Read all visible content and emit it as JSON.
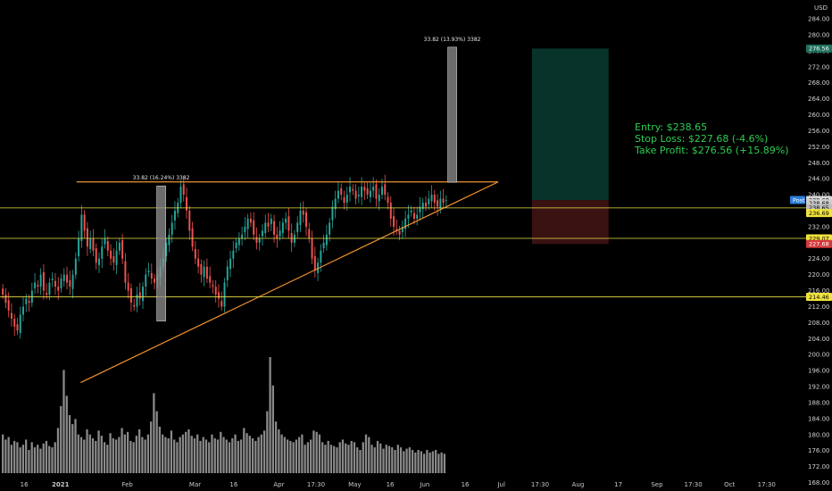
{
  "chart_data": {
    "type": "candlestick",
    "currency": "USD",
    "y_axis": {
      "range": [
        166,
        288
      ],
      "ticks": [
        168,
        172,
        176,
        180,
        184,
        188,
        192,
        196,
        200,
        204,
        208,
        212,
        216,
        220,
        224,
        228,
        232,
        236,
        240,
        244,
        248,
        252,
        256,
        260,
        264,
        268,
        272,
        276,
        280,
        284
      ]
    },
    "x_axis": {
      "ticks": [
        {
          "label": "16",
          "pos": 0.03
        },
        {
          "label": "2021",
          "pos": 0.075,
          "bold": true
        },
        {
          "label": "Feb",
          "pos": 0.158
        },
        {
          "label": "Mar",
          "pos": 0.242
        },
        {
          "label": "16",
          "pos": 0.29
        },
        {
          "label": "Apr",
          "pos": 0.346
        },
        {
          "label": "17:30",
          "pos": 0.392
        },
        {
          "label": "May",
          "pos": 0.44
        },
        {
          "label": "16",
          "pos": 0.484
        },
        {
          "label": "Jun",
          "pos": 0.527
        },
        {
          "label": "16",
          "pos": 0.577
        },
        {
          "label": "Jul",
          "pos": 0.622
        },
        {
          "label": "17:30",
          "pos": 0.67
        },
        {
          "label": "Aug",
          "pos": 0.717
        },
        {
          "label": "17",
          "pos": 0.767
        },
        {
          "label": "Sep",
          "pos": 0.815
        },
        {
          "label": "17:30",
          "pos": 0.86
        },
        {
          "label": "Oct",
          "pos": 0.905
        },
        {
          "label": "17:30",
          "pos": 0.951
        }
      ]
    },
    "candle_closes": [
      215,
      213,
      211,
      209,
      207,
      206,
      210,
      212,
      214,
      213,
      216,
      218,
      217,
      220,
      216,
      215,
      218,
      219,
      217,
      216,
      219,
      220,
      218,
      217,
      220,
      224,
      229,
      235,
      231,
      227,
      229,
      226,
      223,
      224,
      227,
      229,
      226,
      224,
      223,
      226,
      228,
      224,
      218,
      216,
      213,
      212,
      215,
      214,
      217,
      220,
      221,
      219,
      218,
      220,
      222,
      224,
      228,
      230,
      233,
      236,
      238,
      242,
      240,
      236,
      231,
      227,
      224,
      222,
      220,
      222,
      219,
      218,
      217,
      215,
      214,
      212,
      218,
      222,
      224,
      226,
      228,
      229,
      230,
      232,
      234,
      233,
      230,
      228,
      229,
      231,
      233,
      232,
      234,
      230,
      229,
      231,
      233,
      234,
      231,
      228,
      230,
      233,
      236,
      235,
      232,
      229,
      224,
      221,
      223,
      226,
      228,
      230,
      233,
      237,
      239,
      241,
      240,
      238,
      240,
      242,
      241,
      239,
      240,
      242,
      241,
      240,
      241,
      242,
      239,
      240,
      242,
      240,
      238,
      234,
      232,
      231,
      230,
      232,
      234,
      235,
      236,
      234,
      235,
      237,
      238,
      237,
      239,
      240,
      238,
      237,
      239,
      238,
      238.68
    ],
    "volume": [
      30,
      26,
      28,
      22,
      25,
      24,
      20,
      22,
      26,
      18,
      24,
      20,
      22,
      19,
      23,
      25,
      21,
      20,
      24,
      35,
      52,
      80,
      60,
      45,
      38,
      42,
      30,
      28,
      26,
      34,
      30,
      27,
      25,
      33,
      29,
      24,
      22,
      31,
      27,
      26,
      28,
      35,
      30,
      32,
      25,
      24,
      29,
      34,
      28,
      26,
      30,
      40,
      62,
      48,
      36,
      30,
      28,
      27,
      33,
      26,
      24,
      28,
      30,
      32,
      34,
      29,
      27,
      30,
      25,
      28,
      26,
      24,
      30,
      27,
      26,
      32,
      28,
      26,
      24,
      27,
      30,
      25,
      26,
      35,
      31,
      29,
      27,
      25,
      28,
      30,
      33,
      48,
      90,
      68,
      40,
      34,
      30,
      28,
      26,
      25,
      24,
      26,
      28,
      30,
      22,
      24,
      26,
      33,
      32,
      30,
      24,
      22,
      25,
      22,
      21,
      20,
      24,
      26,
      23,
      22,
      25,
      24,
      20,
      18,
      24,
      30,
      28,
      22,
      20,
      25,
      23,
      19,
      22,
      21,
      20,
      18,
      22,
      20,
      17,
      19,
      20,
      18,
      16,
      18,
      17,
      15,
      18,
      16,
      17,
      18,
      15,
      16,
      15
    ],
    "annotations": {
      "ascending_triangle": {
        "resistance": 243.2,
        "support_start": {
          "x": 0.1,
          "y": 193
        },
        "support_end": {
          "x": 0.618,
          "y": 243.2
        }
      },
      "horizontal_lines": [
        236.69,
        229.07,
        214.46
      ],
      "measure_boxes": [
        {
          "label": "33.82 (16.24%) 3382",
          "x": 0.2,
          "low": 208.4,
          "high": 242.2
        },
        {
          "label": "33.82 (13.93%) 3382",
          "x": 0.561,
          "low": 243.1,
          "high": 276.9
        }
      ],
      "position": {
        "entry": 238.65,
        "stop": 227.68,
        "target": 276.56,
        "x_start": 0.66,
        "x_end": 0.755
      }
    },
    "position_text": [
      "Entry: $238.65",
      "Stop Loss: $227.68 (-4.6%)",
      "Take Profit: $276.56 (+15.89%)"
    ],
    "price_labels": [
      {
        "value": "276.56",
        "price": 276.56,
        "bg": "#1f6f5c",
        "fg": "#ffffff"
      },
      {
        "value": "238.68",
        "price": 238.68,
        "bg": "#d7d7d7",
        "fg": "#000000",
        "tag": "Post",
        "tag_bg": "#2a7fd6"
      },
      {
        "value": "238.68",
        "price": 237.8,
        "bg": "#cfcfcf",
        "fg": "#000000"
      },
      {
        "value": "238.65",
        "price": 236.7,
        "bg": "#bdbdbd",
        "fg": "#000000"
      },
      {
        "value": "236.69",
        "price": 235.4,
        "bg": "#f0e33d",
        "fg": "#000000"
      },
      {
        "value": "229.07",
        "price": 229.07,
        "bg": "#f0e33d",
        "fg": "#000000"
      },
      {
        "value": "227.68",
        "price": 227.68,
        "bg": "#d23a3a",
        "fg": "#ffffff"
      },
      {
        "value": "214.46",
        "price": 214.46,
        "bg": "#f0e33d",
        "fg": "#000000"
      }
    ],
    "colors": {
      "up": "#26a69a",
      "down": "#ef5350",
      "line": "#f0922e",
      "hline": "#e8e14a",
      "target_fill": "#07332a",
      "stop_fill": "#3a1212",
      "volume": "#8a8a8a",
      "text_green": "#2ecc52"
    }
  }
}
